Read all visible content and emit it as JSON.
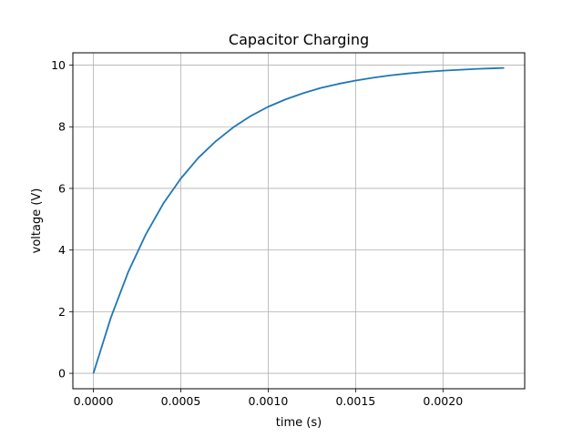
{
  "chart_data": {
    "type": "line",
    "title": "Capacitor Charging",
    "xlabel": "time (s)",
    "ylabel": "voltage (V)",
    "xlim": [
      -0.0001175,
      0.0024675
    ],
    "ylim": [
      -0.5,
      10.4
    ],
    "x_ticks": [
      0.0,
      0.0005,
      0.001,
      0.0015,
      0.002
    ],
    "x_tick_labels": [
      "0.0000",
      "0.0005",
      "0.0010",
      "0.0015",
      "0.0020"
    ],
    "y_ticks": [
      0,
      2,
      4,
      6,
      8,
      10
    ],
    "y_tick_labels": [
      "0",
      "2",
      "4",
      "6",
      "8",
      "10"
    ],
    "grid": true,
    "series": [
      {
        "color": "#1f77b4",
        "x": [
          0.0,
          0.0001,
          0.0002,
          0.0003,
          0.0004,
          0.0005,
          0.0006,
          0.0007,
          0.0008,
          0.0009,
          0.001,
          0.0011,
          0.0012,
          0.0013,
          0.0014,
          0.0015,
          0.0016,
          0.0017,
          0.0018,
          0.0019,
          0.002,
          0.0021,
          0.0022,
          0.0023,
          0.00235
        ],
        "y": [
          0.0,
          1.81,
          3.3,
          4.51,
          5.51,
          6.32,
          6.99,
          7.53,
          7.98,
          8.35,
          8.65,
          8.89,
          9.09,
          9.26,
          9.39,
          9.5,
          9.59,
          9.67,
          9.73,
          9.78,
          9.82,
          9.85,
          9.88,
          9.9,
          9.91
        ]
      }
    ]
  }
}
